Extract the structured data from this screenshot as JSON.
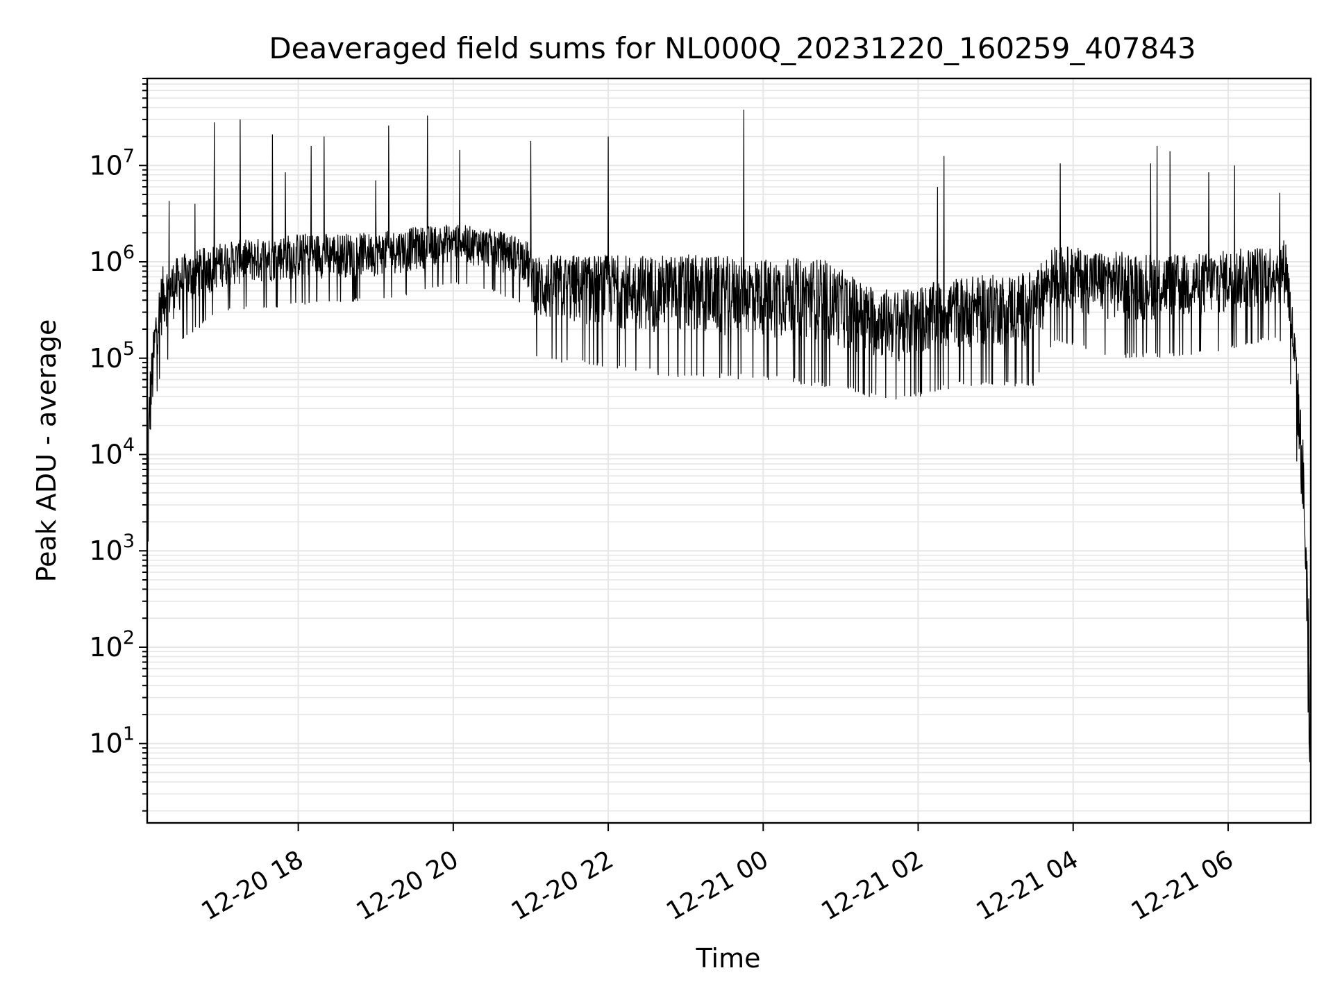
{
  "chart_data": {
    "type": "line",
    "title": "Deaveraged field sums for NL000Q_20231220_160259_407843",
    "xlabel": "Time",
    "ylabel": "Peak ADU - average",
    "x_range": [
      "2023-12-20 16:03",
      "2023-12-21 07:04"
    ],
    "y_scale": "log",
    "ylim": [
      1.5,
      80000000
    ],
    "grid": true,
    "line_color": "#000000",
    "grid_color": "#e6e6e6",
    "x_ticks": [
      {
        "value": "2023-12-20 18:00",
        "label": "12-20 18"
      },
      {
        "value": "2023-12-20 20:00",
        "label": "12-20 20"
      },
      {
        "value": "2023-12-20 22:00",
        "label": "12-20 22"
      },
      {
        "value": "2023-12-21 00:00",
        "label": "12-21 00"
      },
      {
        "value": "2023-12-21 02:00",
        "label": "12-21 02"
      },
      {
        "value": "2023-12-21 04:00",
        "label": "12-21 04"
      },
      {
        "value": "2023-12-21 06:00",
        "label": "12-21 06"
      }
    ],
    "y_ticks": [
      {
        "value": 10,
        "base": "10",
        "exp": "1"
      },
      {
        "value": 100,
        "base": "10",
        "exp": "2"
      },
      {
        "value": 1000,
        "base": "10",
        "exp": "3"
      },
      {
        "value": 10000,
        "base": "10",
        "exp": "4"
      },
      {
        "value": 100000,
        "base": "10",
        "exp": "5"
      },
      {
        "value": 1000000,
        "base": "10",
        "exp": "6"
      },
      {
        "value": 10000000,
        "base": "10",
        "exp": "7"
      }
    ],
    "series": [
      {
        "envelope": [
          {
            "t": "2023-12-20 16:03",
            "lo": 1.5,
            "hi": 30000
          },
          {
            "t": "2023-12-20 16:05",
            "lo": 3000,
            "hi": 80000
          },
          {
            "t": "2023-12-20 16:10",
            "lo": 40000,
            "hi": 400000
          },
          {
            "t": "2023-12-20 16:15",
            "lo": 80000,
            "hi": 900000
          },
          {
            "t": "2023-12-20 16:30",
            "lo": 150000,
            "hi": 1200000
          },
          {
            "t": "2023-12-20 17:00",
            "lo": 300000,
            "hi": 1600000
          },
          {
            "t": "2023-12-20 18:00",
            "lo": 350000,
            "hi": 2000000
          },
          {
            "t": "2023-12-20 19:00",
            "lo": 400000,
            "hi": 2000000
          },
          {
            "t": "2023-12-20 19:30",
            "lo": 450000,
            "hi": 2300000
          },
          {
            "t": "2023-12-20 20:00",
            "lo": 600000,
            "hi": 2500000
          },
          {
            "t": "2023-12-20 20:30",
            "lo": 500000,
            "hi": 2200000
          },
          {
            "t": "2023-12-20 20:55",
            "lo": 350000,
            "hi": 1800000
          },
          {
            "t": "2023-12-20 21:05",
            "lo": 90000,
            "hi": 1200000
          },
          {
            "t": "2023-12-20 22:00",
            "lo": 80000,
            "hi": 1200000
          },
          {
            "t": "2023-12-20 23:00",
            "lo": 60000,
            "hi": 1200000
          },
          {
            "t": "2023-12-21 00:00",
            "lo": 60000,
            "hi": 1100000
          },
          {
            "t": "2023-12-21 00:45",
            "lo": 50000,
            "hi": 1100000
          },
          {
            "t": "2023-12-21 01:20",
            "lo": 40000,
            "hi": 600000
          },
          {
            "t": "2023-12-21 01:45",
            "lo": 35000,
            "hi": 500000
          },
          {
            "t": "2023-12-21 02:30",
            "lo": 50000,
            "hi": 700000
          },
          {
            "t": "2023-12-21 03:30",
            "lo": 50000,
            "hi": 800000
          },
          {
            "t": "2023-12-21 03:45",
            "lo": 150000,
            "hi": 1500000
          },
          {
            "t": "2023-12-21 04:30",
            "lo": 100000,
            "hi": 1300000
          },
          {
            "t": "2023-12-21 05:30",
            "lo": 100000,
            "hi": 1200000
          },
          {
            "t": "2023-12-21 06:30",
            "lo": 150000,
            "hi": 1500000
          },
          {
            "t": "2023-12-21 06:45",
            "lo": 150000,
            "hi": 1800000
          },
          {
            "t": "2023-12-21 06:52",
            "lo": 15000,
            "hi": 180000
          },
          {
            "t": "2023-12-21 06:58",
            "lo": 500,
            "hi": 15000
          },
          {
            "t": "2023-12-21 07:04",
            "lo": 3,
            "hi": 100
          }
        ],
        "spikes": [
          {
            "t": "2023-12-20 16:20",
            "v": 4300000
          },
          {
            "t": "2023-12-20 16:40",
            "v": 4000000
          },
          {
            "t": "2023-12-20 16:55",
            "v": 28000000
          },
          {
            "t": "2023-12-20 17:15",
            "v": 30000000
          },
          {
            "t": "2023-12-20 17:40",
            "v": 21000000
          },
          {
            "t": "2023-12-20 17:50",
            "v": 8500000
          },
          {
            "t": "2023-12-20 18:10",
            "v": 16000000
          },
          {
            "t": "2023-12-20 18:20",
            "v": 20000000
          },
          {
            "t": "2023-12-20 19:00",
            "v": 7000000
          },
          {
            "t": "2023-12-20 19:10",
            "v": 26000000
          },
          {
            "t": "2023-12-20 19:40",
            "v": 33000000
          },
          {
            "t": "2023-12-20 20:05",
            "v": 14500000
          },
          {
            "t": "2023-12-20 21:00",
            "v": 18000000
          },
          {
            "t": "2023-12-20 22:00",
            "v": 20000000
          },
          {
            "t": "2023-12-20 23:45",
            "v": 38000000
          },
          {
            "t": "2023-12-21 02:15",
            "v": 6000000
          },
          {
            "t": "2023-12-21 02:20",
            "v": 12500000
          },
          {
            "t": "2023-12-21 03:50",
            "v": 10500000
          },
          {
            "t": "2023-12-21 05:00",
            "v": 10500000
          },
          {
            "t": "2023-12-21 05:05",
            "v": 16000000
          },
          {
            "t": "2023-12-21 05:15",
            "v": 14000000
          },
          {
            "t": "2023-12-21 05:45",
            "v": 8500000
          },
          {
            "t": "2023-12-21 06:05",
            "v": 10000000
          },
          {
            "t": "2023-12-21 06:40",
            "v": 5200000
          }
        ]
      }
    ]
  }
}
